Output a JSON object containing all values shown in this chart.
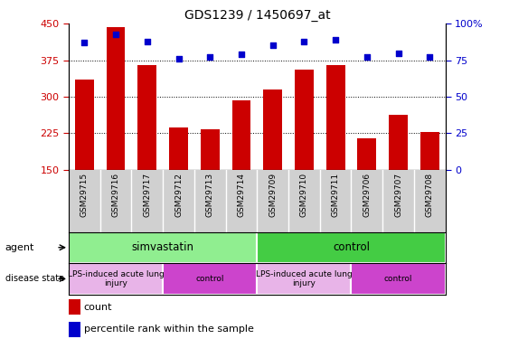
{
  "title": "GDS1239 / 1450697_at",
  "samples": [
    "GSM29715",
    "GSM29716",
    "GSM29717",
    "GSM29712",
    "GSM29713",
    "GSM29714",
    "GSM29709",
    "GSM29710",
    "GSM29711",
    "GSM29706",
    "GSM29707",
    "GSM29708"
  ],
  "counts": [
    335,
    443,
    365,
    237,
    232,
    293,
    315,
    355,
    365,
    215,
    262,
    228
  ],
  "percentiles": [
    87,
    93,
    88,
    76,
    77,
    79,
    85,
    88,
    89,
    77,
    80,
    77
  ],
  "ylim_left": [
    150,
    450
  ],
  "ylim_right": [
    0,
    100
  ],
  "yticks_left": [
    150,
    225,
    300,
    375,
    450
  ],
  "yticks_right": [
    0,
    25,
    50,
    75,
    100
  ],
  "bar_color": "#cc0000",
  "dot_color": "#0000cc",
  "agent_groups": [
    {
      "label": "simvastatin",
      "start": 0,
      "end": 6,
      "color": "#90ee90"
    },
    {
      "label": "control",
      "start": 6,
      "end": 12,
      "color": "#44cc44"
    }
  ],
  "disease_groups": [
    {
      "label": "LPS-induced acute lung\ninjury",
      "start": 0,
      "end": 3,
      "color": "#e8b4e8"
    },
    {
      "label": "control",
      "start": 3,
      "end": 6,
      "color": "#cc44cc"
    },
    {
      "label": "LPS-induced acute lung\ninjury",
      "start": 6,
      "end": 9,
      "color": "#e8b4e8"
    },
    {
      "label": "control",
      "start": 9,
      "end": 12,
      "color": "#cc44cc"
    }
  ],
  "agent_label": "agent",
  "disease_label": "disease state",
  "legend_count": "count",
  "legend_percentile": "percentile rank within the sample",
  "tick_color_left": "#cc0000",
  "tick_color_right": "#0000cc"
}
